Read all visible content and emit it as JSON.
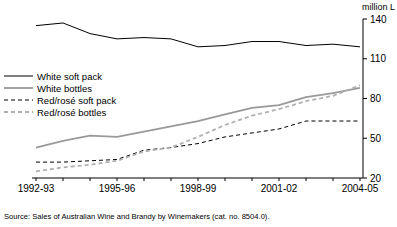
{
  "chart_data": {
    "type": "line",
    "ylabel": "million L",
    "source": "Source: Sales of Australian Wine and Brandy by Winemakers (cat. no. 8504.0).",
    "categories": [
      "1992-93",
      null,
      null,
      "1995-96",
      null,
      null,
      "1998-99",
      null,
      null,
      "2001-02",
      null,
      null,
      "2004-05"
    ],
    "series": [
      {
        "name": "White soft pack",
        "color": "#000000",
        "line_style": "solid",
        "values": [
          135,
          137,
          129,
          125,
          126,
          125,
          119,
          120,
          123,
          123,
          120,
          121,
          119
        ]
      },
      {
        "name": "White bottles",
        "color": "#999999",
        "line_style": "solid",
        "values": [
          43,
          48,
          52,
          51,
          55,
          59,
          63,
          68,
          73,
          75,
          81,
          84,
          88
        ]
      },
      {
        "name": "Red/rosé soft pack",
        "color": "#000000",
        "line_style": "dashed",
        "values": [
          32,
          32,
          33,
          34,
          41,
          43,
          46,
          51,
          54,
          57,
          63,
          63,
          63
        ]
      },
      {
        "name": "Red/rosé bottles",
        "color": "#b0b0b0",
        "line_style": "dashed",
        "values": [
          25,
          28,
          30,
          33,
          40,
          43,
          51,
          60,
          67,
          72,
          78,
          82,
          90
        ]
      }
    ],
    "ylim": [
      20,
      140
    ],
    "yticks": [
      20,
      50,
      80,
      110,
      140
    ],
    "legend": "top-left",
    "grid": false
  }
}
